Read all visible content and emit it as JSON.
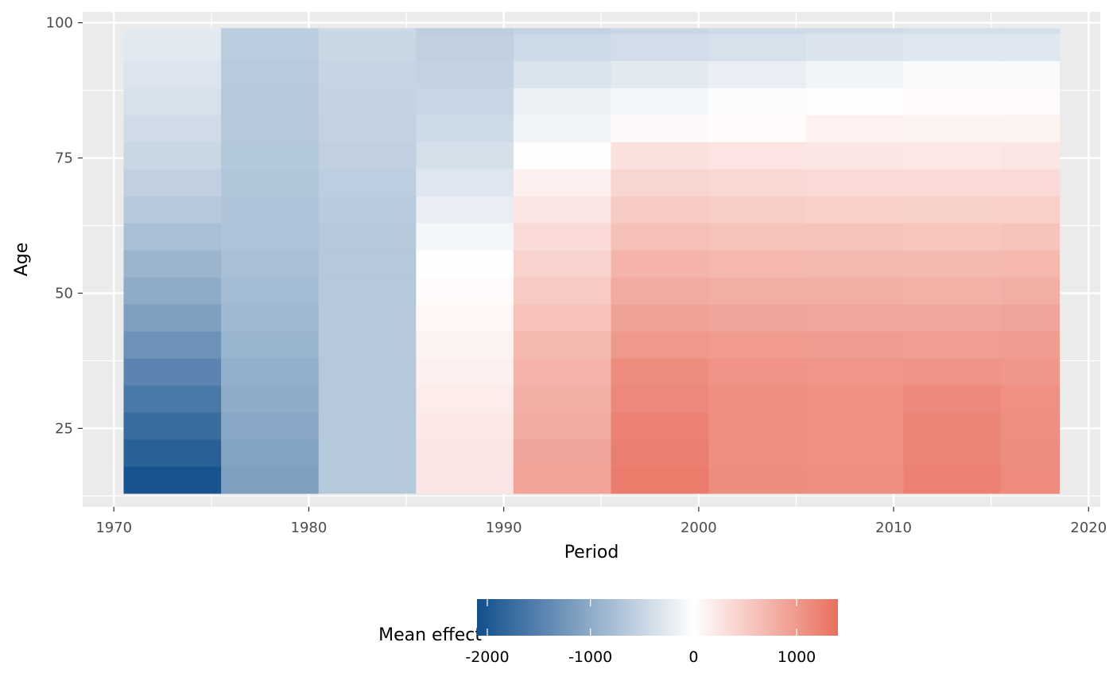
{
  "chart_data": {
    "type": "heatmap",
    "title": "",
    "xlabel": "Period",
    "ylabel": "Age",
    "xlim": [
      1968.4,
      2020.6
    ],
    "ylim": [
      10.5,
      102.0
    ],
    "x_ticks": [
      1970,
      1980,
      1990,
      2000,
      2010,
      2020
    ],
    "y_ticks": [
      25,
      50,
      75,
      100
    ],
    "grid": true,
    "panel_background": "#ebebeb",
    "period_bins": [
      {
        "from": 1970.5,
        "to": 1975.5
      },
      {
        "from": 1975.5,
        "to": 1980.5
      },
      {
        "from": 1980.5,
        "to": 1985.5
      },
      {
        "from": 1985.5,
        "to": 1990.5
      },
      {
        "from": 1990.5,
        "to": 1995.5
      },
      {
        "from": 1995.5,
        "to": 2000.5
      },
      {
        "from": 2000.5,
        "to": 2005.5
      },
      {
        "from": 2005.5,
        "to": 2010.5
      },
      {
        "from": 2010.5,
        "to": 2015.5
      },
      {
        "from": 2015.5,
        "to": 2018.5
      }
    ],
    "age_bins": [
      {
        "from": 13,
        "to": 18
      },
      {
        "from": 18,
        "to": 23
      },
      {
        "from": 23,
        "to": 28
      },
      {
        "from": 28,
        "to": 33
      },
      {
        "from": 33,
        "to": 38
      },
      {
        "from": 38,
        "to": 43
      },
      {
        "from": 43,
        "to": 48
      },
      {
        "from": 48,
        "to": 53
      },
      {
        "from": 53,
        "to": 58
      },
      {
        "from": 58,
        "to": 63
      },
      {
        "from": 63,
        "to": 68
      },
      {
        "from": 68,
        "to": 73
      },
      {
        "from": 73,
        "to": 78
      },
      {
        "from": 78,
        "to": 83
      },
      {
        "from": 83,
        "to": 88
      },
      {
        "from": 88,
        "to": 93
      },
      {
        "from": 93,
        "to": 98
      },
      {
        "from": 98,
        "to": 99
      }
    ],
    "values": [
      [
        -2050,
        -1150,
        -650,
        250,
        900,
        1280,
        1120,
        1100,
        1230,
        1140
      ],
      [
        -1900,
        -1100,
        -650,
        250,
        880,
        1250,
        1100,
        1080,
        1200,
        1120
      ],
      [
        -1750,
        -1050,
        -650,
        220,
        820,
        1230,
        1100,
        1080,
        1190,
        1110
      ],
      [
        -1600,
        -1000,
        -650,
        180,
        780,
        1160,
        1100,
        1080,
        1150,
        1080
      ],
      [
        -1450,
        -950,
        -650,
        150,
        730,
        1120,
        1050,
        1030,
        1040,
        1020
      ],
      [
        -1300,
        -900,
        -650,
        110,
        680,
        1000,
        980,
        960,
        950,
        960
      ],
      [
        -1150,
        -850,
        -650,
        80,
        600,
        910,
        880,
        870,
        860,
        880
      ],
      [
        -1000,
        -800,
        -650,
        40,
        520,
        820,
        790,
        780,
        760,
        780
      ],
      [
        -880,
        -760,
        -650,
        10,
        440,
        730,
        700,
        690,
        680,
        700
      ],
      [
        -760,
        -720,
        -650,
        -100,
        350,
        620,
        590,
        580,
        560,
        580
      ],
      [
        -650,
        -700,
        -620,
        -200,
        250,
        520,
        490,
        470,
        460,
        470
      ],
      [
        -560,
        -680,
        -590,
        -290,
        150,
        410,
        380,
        360,
        350,
        360
      ],
      [
        -480,
        -660,
        -560,
        -380,
        10,
        290,
        260,
        240,
        220,
        240
      ],
      [
        -420,
        -650,
        -540,
        -440,
        -120,
        60,
        40,
        130,
        110,
        120
      ],
      [
        -360,
        -640,
        -520,
        -490,
        -180,
        -100,
        -50,
        -20,
        40,
        40
      ],
      [
        -310,
        -630,
        -500,
        -530,
        -340,
        -260,
        -200,
        -120,
        -60,
        -60
      ],
      [
        -270,
        -610,
        -480,
        -560,
        -450,
        -400,
        -360,
        -320,
        -280,
        -280
      ],
      [
        -250,
        -590,
        -460,
        -580,
        -520,
        -480,
        -440,
        -420,
        -380,
        -380
      ]
    ],
    "legend": {
      "title": "Mean effect",
      "position": "bottom",
      "low_color": "#114f8c",
      "mid_color": "#ffffff",
      "high_color": "#e9705e",
      "domain": [
        -2100,
        0,
        1400
      ],
      "tick_values": [
        -2000,
        -1000,
        0,
        1000
      ],
      "tick_labels": [
        "-2000",
        "-1000",
        "0",
        "1000"
      ]
    }
  }
}
